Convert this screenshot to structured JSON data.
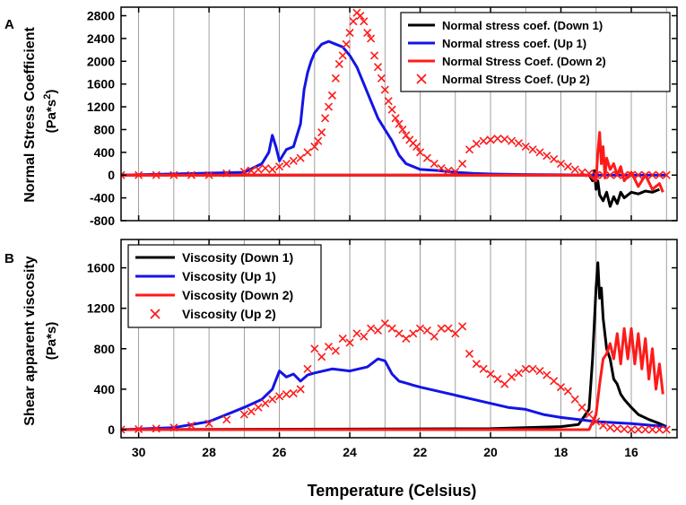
{
  "figure": {
    "xlabel": "Temperature (Celsius)",
    "x_ticks": [
      30,
      28,
      26,
      24,
      22,
      20,
      18,
      16
    ],
    "xlim": [
      30.5,
      14.7
    ]
  },
  "colors": {
    "down1": "#000000",
    "up1": "#1414e6",
    "down2": "#ff1a1a",
    "up2": "#ff1a1a"
  },
  "chart_data": [
    {
      "panel": "A",
      "type": "line",
      "ylabel_line1": "Normal Stress Coefficient",
      "ylabel_line2": "(Pa*s",
      "ylabel_sup": "2",
      "ylabel_close": ")",
      "ylim": [
        -800,
        2950
      ],
      "y_ticks": [
        -800,
        -400,
        0,
        400,
        800,
        1200,
        1600,
        2000,
        2400,
        2800
      ],
      "x_gridlines": [
        30,
        29,
        28,
        27,
        26,
        25,
        24,
        23,
        22,
        21,
        20,
        19,
        18,
        17,
        16,
        15
      ],
      "series": [
        {
          "name": "Normal stress coef. (Down 1)",
          "key": "down1",
          "style": "line",
          "x": [
            30.5,
            18,
            17.2,
            17.1,
            17.05,
            17.0,
            16.95,
            16.9,
            16.8,
            16.7,
            16.6,
            16.5,
            16.4,
            16.3,
            16.2,
            16.0,
            15.8,
            15.6,
            15.4,
            15.2
          ],
          "y": [
            0,
            0,
            0,
            -100,
            80,
            -250,
            -100,
            -350,
            -450,
            -300,
            -550,
            -380,
            -500,
            -300,
            -400,
            -300,
            -330,
            -280,
            -300,
            -250
          ]
        },
        {
          "name": "Normal stress coef. (Up 1)",
          "key": "up1",
          "style": "line",
          "x": [
            30.5,
            27,
            26.5,
            26.3,
            26.2,
            26.1,
            26.0,
            25.9,
            25.8,
            25.6,
            25.4,
            25.3,
            25.2,
            25.1,
            25.0,
            24.8,
            24.6,
            24.4,
            24.2,
            24.0,
            23.8,
            23.6,
            23.4,
            23.2,
            23.0,
            22.8,
            22.6,
            22.4,
            22.2,
            22.0,
            21.5,
            21.0,
            20.5,
            20.0,
            19.0,
            18.0,
            17.0,
            16.0,
            15.0
          ],
          "y": [
            0,
            50,
            200,
            400,
            700,
            500,
            250,
            350,
            450,
            500,
            900,
            1500,
            1800,
            2000,
            2150,
            2300,
            2350,
            2300,
            2250,
            2100,
            1900,
            1600,
            1300,
            1000,
            800,
            600,
            350,
            200,
            150,
            100,
            80,
            50,
            30,
            20,
            10,
            5,
            0,
            0,
            0
          ]
        },
        {
          "name": "Normal Stress Coef. (Down 2)",
          "key": "down2",
          "style": "line",
          "x": [
            30.5,
            17.2,
            17.0,
            16.95,
            16.9,
            16.85,
            16.8,
            16.75,
            16.7,
            16.6,
            16.5,
            16.4,
            16.3,
            16.2,
            16.0,
            15.8,
            15.6,
            15.4,
            15.2,
            15.1
          ],
          "y": [
            0,
            0,
            -100,
            400,
            750,
            200,
            500,
            -50,
            300,
            100,
            200,
            0,
            150,
            -100,
            50,
            -200,
            0,
            -250,
            -150,
            -300
          ]
        },
        {
          "name": "Normal Stress Coef. (Up 2)",
          "key": "up2",
          "style": "marker",
          "x": [
            30.5,
            30.0,
            29.5,
            29.0,
            28.5,
            28.0,
            27.5,
            27.0,
            26.8,
            26.6,
            26.4,
            26.2,
            26.0,
            25.8,
            25.6,
            25.4,
            25.2,
            25.0,
            24.9,
            24.8,
            24.7,
            24.6,
            24.5,
            24.4,
            24.3,
            24.2,
            24.1,
            24.0,
            23.9,
            23.8,
            23.7,
            23.6,
            23.5,
            23.4,
            23.3,
            23.2,
            23.1,
            23.0,
            22.9,
            22.8,
            22.7,
            22.6,
            22.5,
            22.4,
            22.3,
            22.2,
            22.1,
            22.0,
            21.8,
            21.6,
            21.4,
            21.2,
            21.0,
            20.8,
            20.6,
            20.4,
            20.2,
            20.0,
            19.8,
            19.6,
            19.4,
            19.2,
            19.0,
            18.8,
            18.6,
            18.4,
            18.2,
            18.0,
            17.8,
            17.6,
            17.4,
            17.2,
            17.0,
            16.8,
            16.6,
            16.4,
            16.2,
            16.0,
            15.8,
            15.6,
            15.4,
            15.2,
            15.0
          ],
          "y": [
            0,
            0,
            0,
            0,
            0,
            0,
            30,
            60,
            80,
            100,
            120,
            100,
            150,
            200,
            250,
            300,
            400,
            500,
            600,
            750,
            1000,
            1200,
            1400,
            1700,
            1950,
            2100,
            2300,
            2500,
            2700,
            2850,
            2800,
            2700,
            2500,
            2400,
            2100,
            1900,
            1700,
            1500,
            1300,
            1150,
            1000,
            900,
            800,
            700,
            620,
            560,
            500,
            400,
            300,
            200,
            120,
            80,
            60,
            200,
            450,
            550,
            600,
            620,
            640,
            630,
            600,
            560,
            500,
            450,
            400,
            340,
            280,
            200,
            150,
            100,
            50,
            30,
            0,
            0,
            0,
            0,
            0,
            0,
            0,
            0,
            0,
            0,
            0
          ]
        }
      ],
      "legend": [
        {
          "label": "Normal stress coef. (Down 1)",
          "key": "down1",
          "style": "line"
        },
        {
          "label": "Normal stress coef. (Up 1)",
          "key": "up1",
          "style": "line"
        },
        {
          "label": "Normal Stress Coef. (Down 2)",
          "key": "down2",
          "style": "line"
        },
        {
          "label": "Normal Stress Coef. (Up 2)",
          "key": "up2",
          "style": "marker"
        }
      ]
    },
    {
      "panel": "B",
      "type": "line",
      "ylabel_line1": "Shear apparent viscosity",
      "ylabel_line2": "(Pa*s)",
      "ylim": [
        -80,
        1880
      ],
      "y_ticks": [
        0,
        400,
        800,
        1200,
        1600
      ],
      "x_gridlines": [
        30,
        29,
        28,
        27,
        26,
        25,
        24,
        23,
        22,
        21,
        20,
        19,
        18,
        17,
        16,
        15
      ],
      "series": [
        {
          "name": "Viscosity (Down 1)",
          "key": "down1",
          "style": "line",
          "x": [
            30.5,
            20,
            18,
            17.5,
            17.2,
            17.1,
            17.0,
            16.95,
            16.9,
            16.85,
            16.8,
            16.7,
            16.6,
            16.5,
            16.4,
            16.3,
            16.2,
            16.0,
            15.8,
            15.5,
            15.2,
            15.0
          ],
          "y": [
            0,
            10,
            30,
            50,
            200,
            700,
            1400,
            1650,
            1300,
            1400,
            1100,
            800,
            700,
            500,
            450,
            350,
            300,
            220,
            150,
            100,
            60,
            30
          ]
        },
        {
          "name": "Viscosity (Up 1)",
          "key": "up1",
          "style": "line",
          "x": [
            30.5,
            29,
            28,
            27.5,
            27,
            26.5,
            26.2,
            26.0,
            25.8,
            25.6,
            25.4,
            25.2,
            25.0,
            24.5,
            24.0,
            23.5,
            23.2,
            23.0,
            22.8,
            22.6,
            22.4,
            22.2,
            22.0,
            21.5,
            21.0,
            20.5,
            20.0,
            19.5,
            19.0,
            18.5,
            18.0,
            17.0,
            16.0,
            15.0
          ],
          "y": [
            0,
            20,
            80,
            150,
            220,
            300,
            400,
            580,
            520,
            550,
            480,
            540,
            560,
            600,
            580,
            620,
            700,
            680,
            550,
            480,
            460,
            440,
            420,
            380,
            340,
            300,
            260,
            220,
            200,
            150,
            120,
            80,
            60,
            30
          ]
        },
        {
          "name": "Viscosity (Down 2)",
          "key": "down2",
          "style": "line",
          "x": [
            30.5,
            17.2,
            17.0,
            16.9,
            16.8,
            16.7,
            16.6,
            16.5,
            16.4,
            16.3,
            16.2,
            16.1,
            16.0,
            15.9,
            15.8,
            15.7,
            15.6,
            15.5,
            15.4,
            15.3,
            15.2,
            15.1
          ],
          "y": [
            0,
            0,
            150,
            450,
            700,
            750,
            850,
            700,
            950,
            650,
            1000,
            700,
            1000,
            650,
            950,
            600,
            900,
            500,
            800,
            400,
            650,
            350
          ]
        },
        {
          "name": "Viscosity (Up 2)",
          "key": "up2",
          "style": "marker",
          "x": [
            30.5,
            30.0,
            29.5,
            29.0,
            28.5,
            28.0,
            27.5,
            27.0,
            26.8,
            26.6,
            26.4,
            26.2,
            26.0,
            25.8,
            25.6,
            25.4,
            25.2,
            25.0,
            24.8,
            24.6,
            24.4,
            24.2,
            24.0,
            23.8,
            23.6,
            23.4,
            23.2,
            23.0,
            22.8,
            22.6,
            22.4,
            22.2,
            22.0,
            21.8,
            21.6,
            21.4,
            21.2,
            21.0,
            20.8,
            20.6,
            20.4,
            20.2,
            20.0,
            19.8,
            19.6,
            19.4,
            19.2,
            19.0,
            18.8,
            18.6,
            18.4,
            18.2,
            18.0,
            17.8,
            17.6,
            17.4,
            17.2,
            17.0,
            16.8,
            16.6,
            16.4,
            16.2,
            16.0,
            15.8,
            15.6,
            15.4,
            15.2,
            15.0
          ],
          "y": [
            0,
            5,
            10,
            20,
            40,
            60,
            100,
            150,
            180,
            220,
            260,
            300,
            330,
            350,
            360,
            400,
            600,
            800,
            720,
            820,
            780,
            900,
            860,
            950,
            920,
            1000,
            980,
            1050,
            1000,
            950,
            900,
            950,
            1000,
            980,
            920,
            1000,
            1000,
            950,
            1020,
            750,
            650,
            600,
            550,
            500,
            450,
            520,
            560,
            600,
            600,
            580,
            540,
            480,
            420,
            380,
            300,
            220,
            150,
            80,
            40,
            20,
            10,
            5,
            0,
            0,
            0,
            0,
            0,
            0
          ]
        }
      ],
      "legend": [
        {
          "label": "Viscosity (Down 1)",
          "key": "down1",
          "style": "line"
        },
        {
          "label": "Viscosity (Up 1)",
          "key": "up1",
          "style": "line"
        },
        {
          "label": "Viscosity (Down 2)",
          "key": "down2",
          "style": "line"
        },
        {
          "label": "Viscosity (Up 2)",
          "key": "up2",
          "style": "marker"
        }
      ]
    }
  ]
}
